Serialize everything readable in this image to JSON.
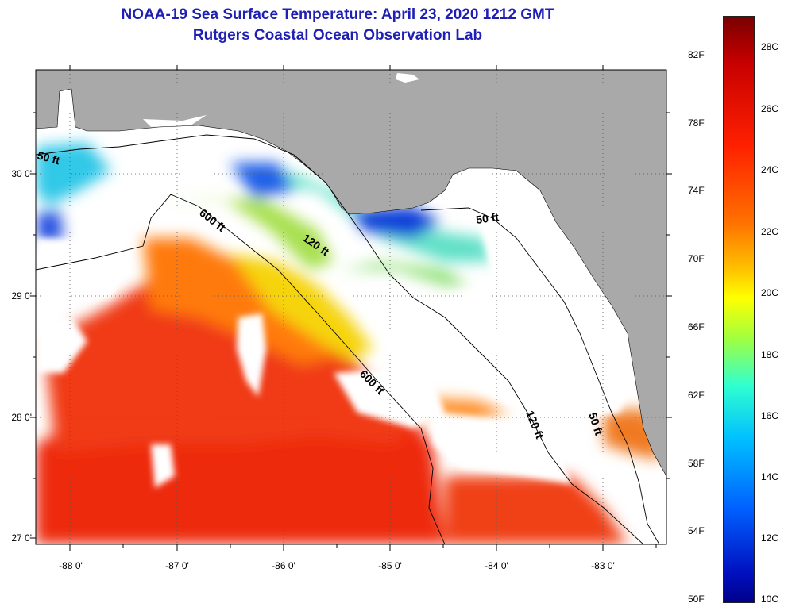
{
  "title": {
    "line1": "NOAA-19 Sea Surface Temperature:  April 23, 2020 1212 GMT",
    "line2": "Rutgers Coastal Ocean Observation Lab"
  },
  "map": {
    "lat_labels": [
      "30 0'",
      "29 0'",
      "28 0'",
      "27 0'"
    ],
    "lon_labels": [
      "-88 0'",
      "-87 0'",
      "-86 0'",
      "-85 0'",
      "-84 0'",
      "-83 0'"
    ],
    "contour_labels": [
      "50 ft",
      "600 ft",
      "120 ft",
      "50 ft",
      "600 ft",
      "120 ft",
      "50 ft"
    ],
    "colors": {
      "land": "#a9a9a9",
      "cloud": "#ffffff",
      "grid": "#555555"
    }
  },
  "colorbar": {
    "fahrenheit": [
      "82F",
      "78F",
      "74F",
      "70F",
      "66F",
      "62F",
      "58F",
      "54F",
      "50F"
    ],
    "celsius": [
      "28C",
      "26C",
      "24C",
      "22C",
      "20C",
      "18C",
      "16C",
      "14C",
      "12C",
      "10C"
    ]
  }
}
